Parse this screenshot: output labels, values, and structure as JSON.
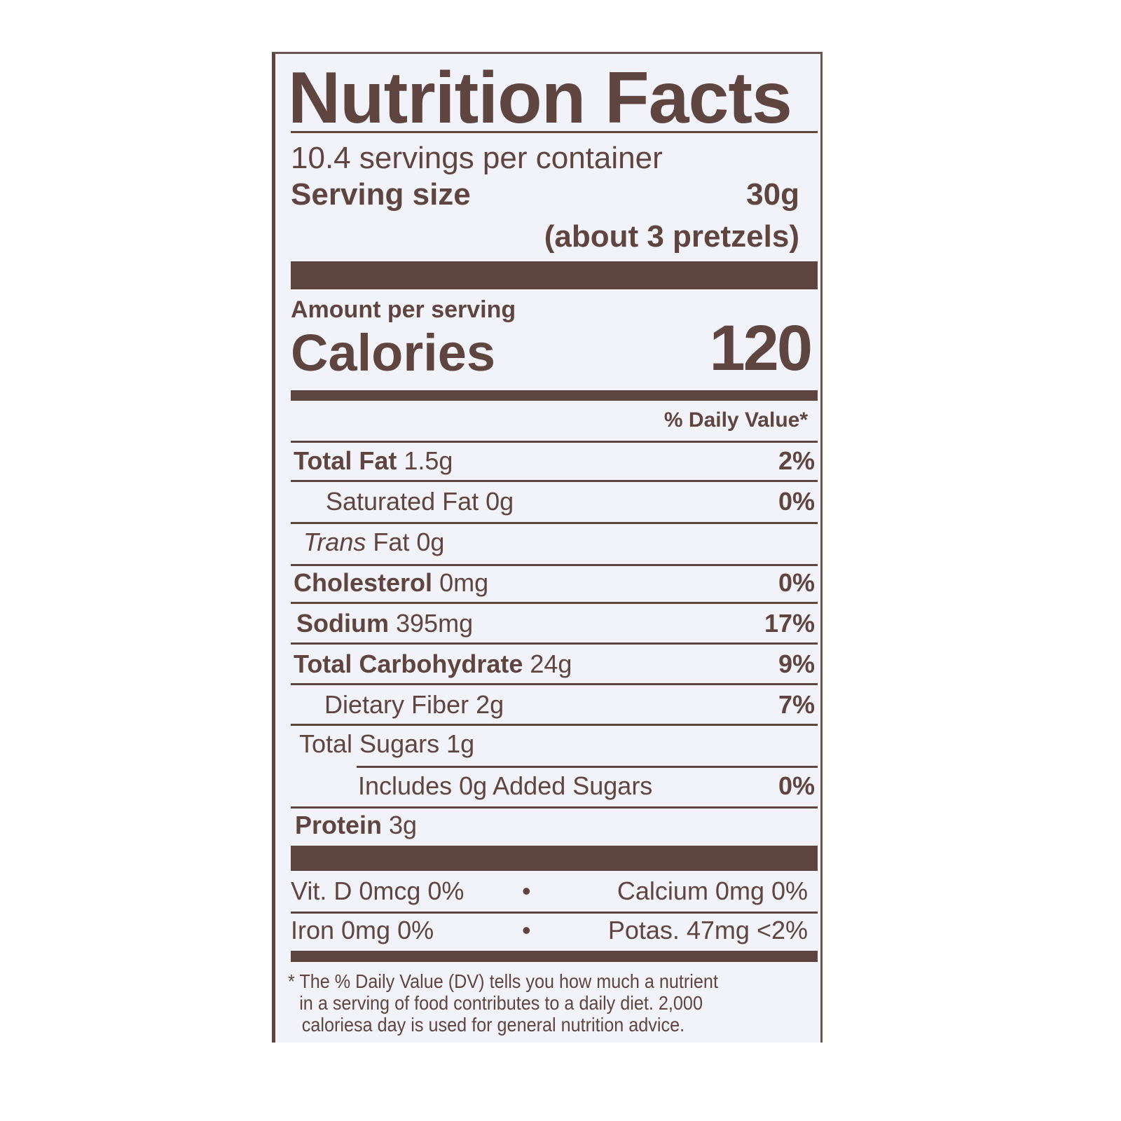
{
  "title": "Nutrition Facts",
  "servings_per_container": "10.4 servings per container",
  "serving_size_label": "Serving size",
  "serving_size_value": "30g",
  "serving_size_note": "(about 3 pretzels)",
  "amount_per_serving": "Amount per serving",
  "calories_label": "Calories",
  "calories_value": "120",
  "daily_value_header": "% Daily Value*",
  "nutrients": [
    {
      "name": "Total Fat",
      "amount": "1.5g",
      "dv": "2%"
    },
    {
      "name": "Saturated Fat",
      "amount": "0g",
      "dv": "0%"
    },
    {
      "name": "Trans",
      "name_rest": "Fat 0g",
      "dv": ""
    },
    {
      "name": "Cholesterol",
      "amount": "0mg",
      "dv": "0%"
    },
    {
      "name": "Sodium",
      "amount": "395mg",
      "dv": "17%"
    },
    {
      "name": "Total Carbohydrate",
      "amount": "24g",
      "dv": "9%"
    },
    {
      "name": "Dietary Fiber",
      "amount": "2g",
      "dv": "7%"
    },
    {
      "name": "Total Sugars",
      "amount": "1g",
      "dv": ""
    },
    {
      "name": "Includes 0g Added Sugars",
      "amount": "",
      "dv": "0%"
    },
    {
      "name": "Protein",
      "amount": "3g",
      "dv": ""
    }
  ],
  "vitamins": {
    "vit_d": "Vit. D 0mcg 0%",
    "calcium": "Calcium 0mg 0%",
    "iron": "Iron 0mg 0%",
    "potassium": "Potas. 47mg <2%",
    "bullet": "•"
  },
  "footnote": [
    "* The % Daily Value (DV) tells you how much a nutrient",
    "in a serving of food contributes to a daily diet. 2,000",
    "caloriesa day is used for general nutrition advice."
  ],
  "colors": {
    "ink": "#5e4540",
    "background": "#f2f3f9"
  }
}
